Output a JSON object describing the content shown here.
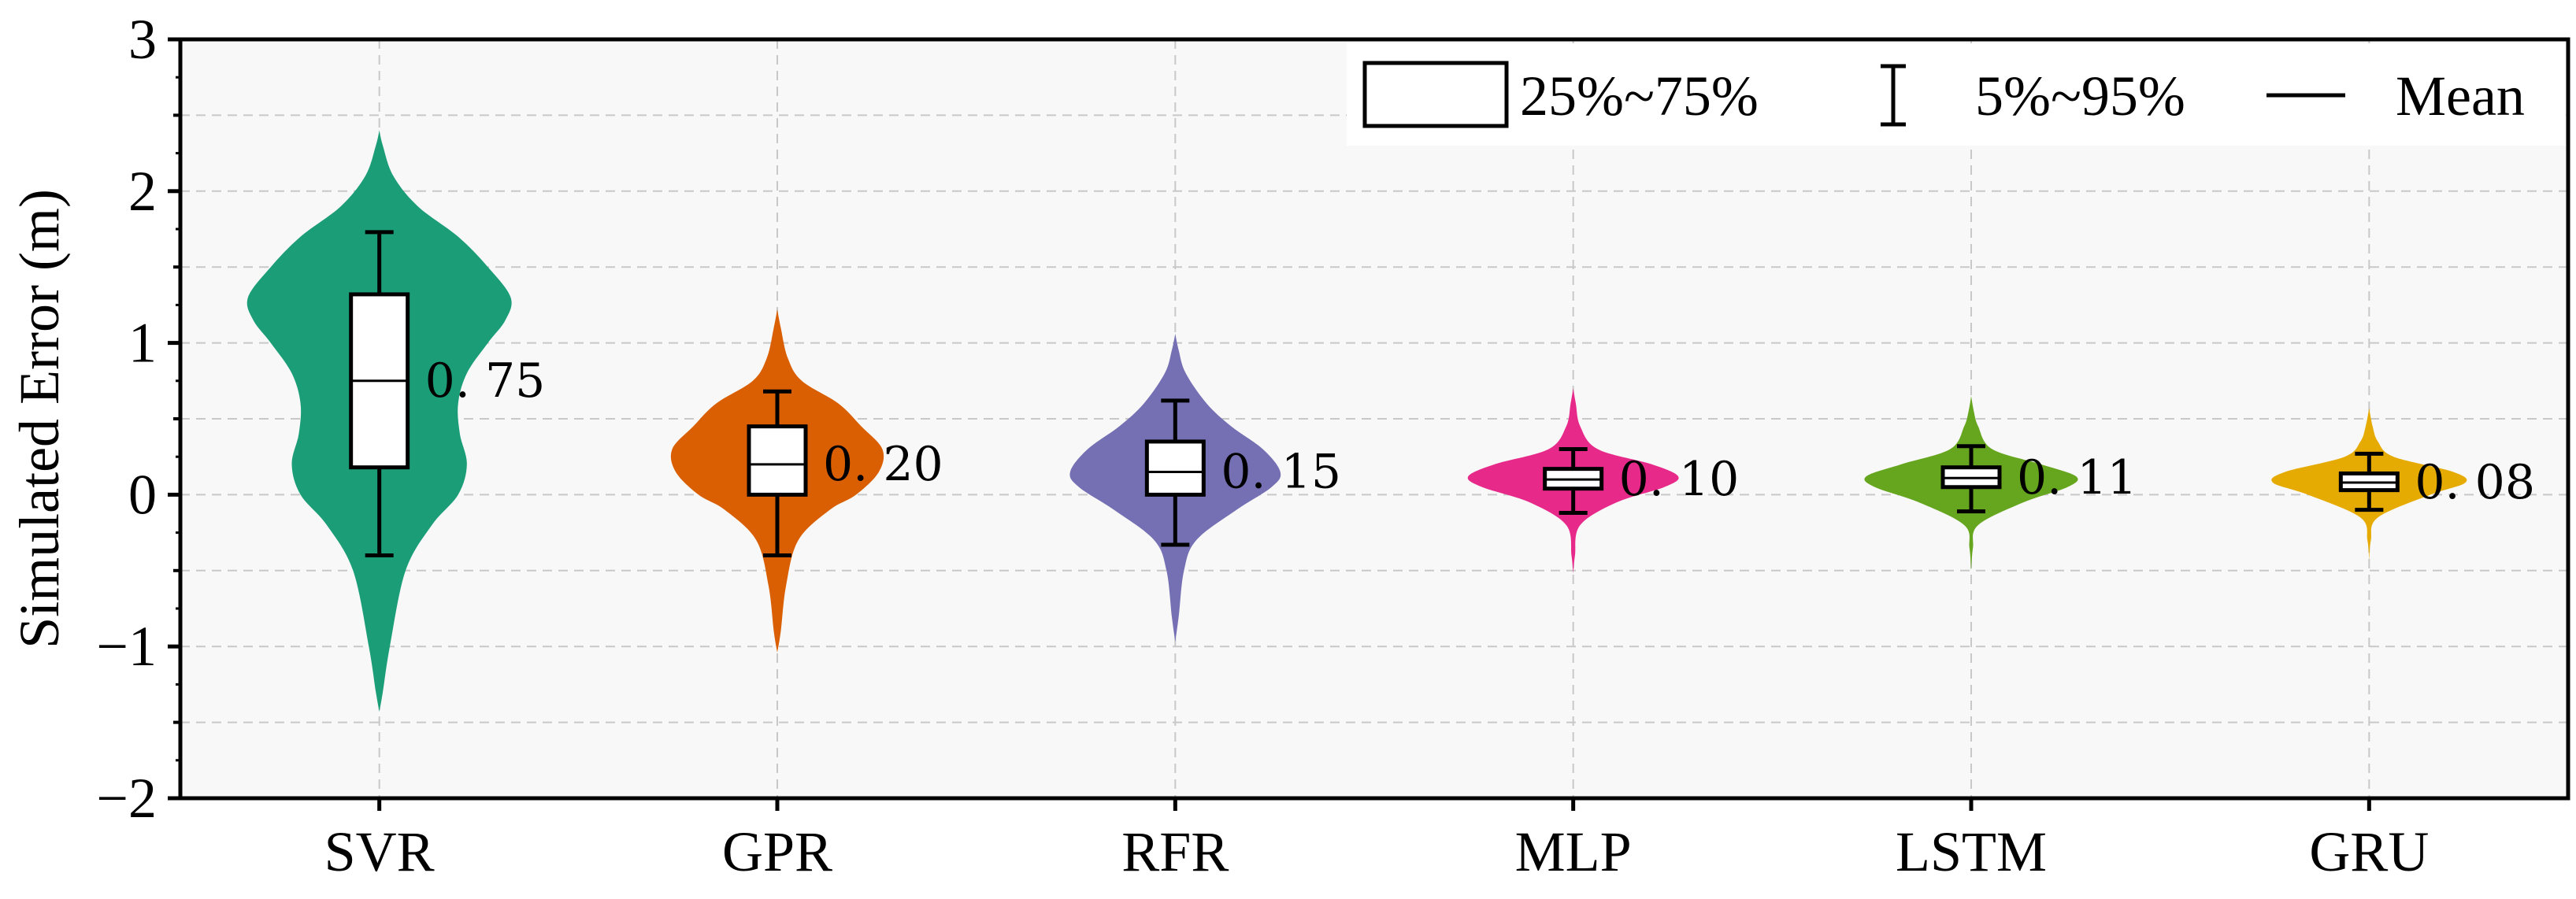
{
  "chart_data": {
    "type": "violin",
    "title": "",
    "xlabel": "",
    "ylabel": "Simulated Error (m)",
    "ylim": [
      -2,
      3
    ],
    "yticks": [
      -2,
      -1,
      0,
      1,
      2,
      3
    ],
    "ytick_labels": [
      "−2",
      "−1",
      "0",
      "1",
      "2",
      "3"
    ],
    "grid": true,
    "categories": [
      "SVR",
      "GPR",
      "RFR",
      "MLP",
      "LSTM",
      "GRU"
    ],
    "series": [
      {
        "name": "SVR",
        "color": "#1b9e77",
        "mean": 0.75,
        "mean_label": "0. 75",
        "q25": 0.18,
        "q75": 1.32,
        "p5": -0.4,
        "p95": 1.73,
        "profile": [
          [
            -1.43,
            0.0
          ],
          [
            -1.3,
            0.02
          ],
          [
            -1.0,
            0.06
          ],
          [
            -0.5,
            0.15
          ],
          [
            -0.2,
            0.3
          ],
          [
            0.0,
            0.45
          ],
          [
            0.2,
            0.5
          ],
          [
            0.4,
            0.46
          ],
          [
            0.6,
            0.45
          ],
          [
            0.8,
            0.5
          ],
          [
            1.0,
            0.62
          ],
          [
            1.15,
            0.72
          ],
          [
            1.3,
            0.75
          ],
          [
            1.5,
            0.62
          ],
          [
            1.7,
            0.45
          ],
          [
            1.9,
            0.22
          ],
          [
            2.1,
            0.08
          ],
          [
            2.3,
            0.02
          ],
          [
            2.4,
            0.0
          ]
        ]
      },
      {
        "name": "GPR",
        "color": "#d95f02",
        "mean": 0.2,
        "mean_label": "0. 20",
        "q25": 0.0,
        "q75": 0.45,
        "p5": -0.4,
        "p95": 0.68,
        "profile": [
          [
            -1.04,
            0.0
          ],
          [
            -0.9,
            0.02
          ],
          [
            -0.6,
            0.05
          ],
          [
            -0.3,
            0.12
          ],
          [
            -0.1,
            0.3
          ],
          [
            0.0,
            0.45
          ],
          [
            0.15,
            0.58
          ],
          [
            0.3,
            0.6
          ],
          [
            0.45,
            0.48
          ],
          [
            0.6,
            0.35
          ],
          [
            0.75,
            0.14
          ],
          [
            0.9,
            0.06
          ],
          [
            1.1,
            0.02
          ],
          [
            1.22,
            0.0
          ]
        ]
      },
      {
        "name": "RFR",
        "color": "#7570b3",
        "mean": 0.15,
        "mean_label": "0. 15",
        "q25": 0.0,
        "q75": 0.35,
        "p5": -0.33,
        "p95": 0.62,
        "profile": [
          [
            -0.97,
            0.0
          ],
          [
            -0.8,
            0.02
          ],
          [
            -0.5,
            0.05
          ],
          [
            -0.3,
            0.12
          ],
          [
            -0.1,
            0.35
          ],
          [
            0.05,
            0.55
          ],
          [
            0.15,
            0.6
          ],
          [
            0.3,
            0.5
          ],
          [
            0.45,
            0.32
          ],
          [
            0.6,
            0.18
          ],
          [
            0.8,
            0.06
          ],
          [
            0.95,
            0.02
          ],
          [
            1.06,
            0.0
          ]
        ]
      },
      {
        "name": "MLP",
        "color": "#e7298a",
        "mean": 0.1,
        "mean_label": "0. 10",
        "q25": 0.04,
        "q75": 0.17,
        "p5": -0.12,
        "p95": 0.3,
        "profile": [
          [
            -0.52,
            0.0
          ],
          [
            -0.4,
            0.01
          ],
          [
            -0.2,
            0.04
          ],
          [
            -0.05,
            0.25
          ],
          [
            0.05,
            0.52
          ],
          [
            0.12,
            0.6
          ],
          [
            0.2,
            0.45
          ],
          [
            0.3,
            0.14
          ],
          [
            0.45,
            0.04
          ],
          [
            0.6,
            0.015
          ],
          [
            0.7,
            0.0
          ]
        ]
      },
      {
        "name": "LSTM",
        "color": "#66a61e",
        "mean": 0.11,
        "mean_label": "0. 11",
        "q25": 0.05,
        "q75": 0.18,
        "p5": -0.11,
        "p95": 0.32,
        "profile": [
          [
            -0.5,
            0.0
          ],
          [
            -0.35,
            0.01
          ],
          [
            -0.2,
            0.04
          ],
          [
            -0.05,
            0.3
          ],
          [
            0.05,
            0.55
          ],
          [
            0.12,
            0.6
          ],
          [
            0.2,
            0.4
          ],
          [
            0.3,
            0.12
          ],
          [
            0.45,
            0.04
          ],
          [
            0.55,
            0.015
          ],
          [
            0.65,
            0.0
          ]
        ]
      },
      {
        "name": "GRU",
        "color": "#e6ab02",
        "mean": 0.08,
        "mean_label": "0. 08",
        "q25": 0.03,
        "q75": 0.14,
        "p5": -0.1,
        "p95": 0.27,
        "profile": [
          [
            -0.43,
            0.0
          ],
          [
            -0.3,
            0.01
          ],
          [
            -0.15,
            0.05
          ],
          [
            0.0,
            0.35
          ],
          [
            0.08,
            0.55
          ],
          [
            0.15,
            0.48
          ],
          [
            0.25,
            0.14
          ],
          [
            0.35,
            0.05
          ],
          [
            0.45,
            0.02
          ],
          [
            0.57,
            0.0
          ]
        ]
      }
    ],
    "legend": {
      "position": "top-right",
      "items": [
        {
          "symbol": "box",
          "label": "25%~75%"
        },
        {
          "symbol": "whisker",
          "label": "5%~95%"
        },
        {
          "symbol": "line",
          "label": "Mean"
        }
      ]
    }
  }
}
